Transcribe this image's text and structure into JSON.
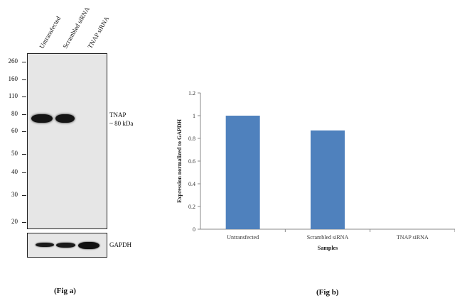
{
  "fig_a": {
    "lanes": [
      "Untransfected",
      "Scrambled siRNA",
      "TNAP siRNA"
    ],
    "markers": [
      "260",
      "160",
      "110",
      "80",
      "60",
      "50",
      "40",
      "30",
      "20"
    ],
    "target_label": "TNAP",
    "target_size": "~ 80 kDa",
    "loading_label": "GAPDH",
    "caption": "(Fig a)",
    "target_band_relative_intensity": [
      1.0,
      1.0,
      0.0
    ],
    "gapdh_band_relative_intensity": [
      0.9,
      0.95,
      1.0
    ]
  },
  "fig_b": {
    "caption": "(Fig b)"
  },
  "chart_data": {
    "type": "bar",
    "categories": [
      "Untransfected",
      "Scrambled siRNA",
      "TNAP siRNA"
    ],
    "values": [
      1.0,
      0.87,
      0.0
    ],
    "ylabel": "Expression normalized to GAPDH",
    "xlabel": "Samples",
    "ylim": [
      0,
      1.2
    ],
    "yticks": [
      "0",
      "0.2",
      "0.4",
      "0.6",
      "0.8",
      "1",
      "1.2"
    ],
    "bar_color": "#4f81bd",
    "grid": false,
    "legend": "none"
  }
}
